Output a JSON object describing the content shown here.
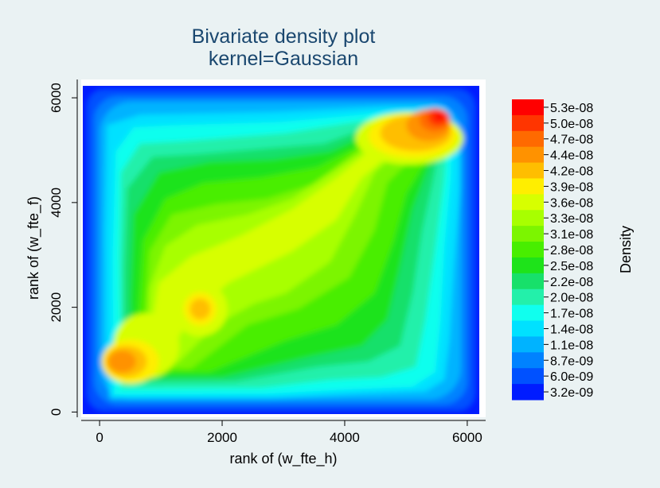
{
  "chart_data": {
    "type": "heatmap",
    "title": "Bivariate density plot",
    "subtitle": "kernel=Gaussian",
    "xlabel": "rank of (w_fte_h)",
    "ylabel": "rank of (w_fte_f)",
    "xlim": [
      -300,
      6300
    ],
    "ylim": [
      -100,
      6350
    ],
    "x_ticks": [
      0,
      2000,
      4000,
      6000
    ],
    "y_ticks": [
      0,
      2000,
      4000,
      6000
    ],
    "grid": false,
    "kernel": "Gaussian",
    "legend": {
      "title": "Density",
      "placement": "right",
      "levels": [
        "5.3e-08",
        "5.0e-08",
        "4.7e-08",
        "4.4e-08",
        "4.2e-08",
        "3.9e-08",
        "3.6e-08",
        "3.3e-08",
        "3.1e-08",
        "2.8e-08",
        "2.5e-08",
        "2.2e-08",
        "2.0e-08",
        "1.7e-08",
        "1.4e-08",
        "1.1e-08",
        "8.7e-09",
        "6.0e-09",
        "3.2e-09"
      ],
      "colors": [
        "#ff0000",
        "#ff3500",
        "#ff6a00",
        "#ff9200",
        "#ffbe00",
        "#ffee00",
        "#d7ff00",
        "#a8ff00",
        "#7cf500",
        "#48ee00",
        "#1ee31a",
        "#17e06a",
        "#23f0aa",
        "#10ffee",
        "#00e1ff",
        "#00b3ff",
        "#0082ff",
        "#0051ff",
        "#001cff"
      ]
    },
    "density_extent": {
      "x": [
        0,
        6250
      ],
      "y": [
        0,
        6250
      ]
    },
    "density_peaks": [
      {
        "x": 5600,
        "y": 5650,
        "level": "5.3e-08"
      },
      {
        "x": 5100,
        "y": 5150,
        "level": "4.4e-08"
      },
      {
        "x": 650,
        "y": 1000,
        "level": "4.4e-08"
      },
      {
        "x": 1850,
        "y": 2000,
        "level": "4.2e-08"
      }
    ]
  }
}
